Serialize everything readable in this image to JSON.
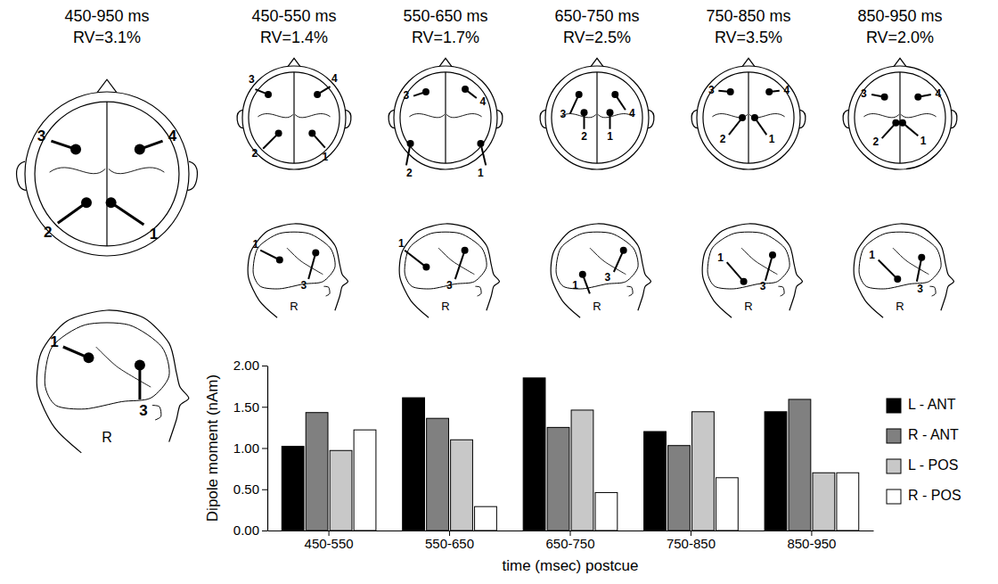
{
  "panels": [
    {
      "title": "450-950 ms",
      "rv": "RV=3.1%",
      "axial_labels": [
        "1",
        "2",
        "3",
        "4"
      ],
      "sagittal_labels": [
        "1",
        "3"
      ],
      "view": "R"
    },
    {
      "title": "450-550 ms",
      "rv": "RV=1.4%",
      "axial_labels": [
        "1",
        "2",
        "3",
        "4"
      ],
      "sagittal_labels": [
        "1",
        "3"
      ],
      "view": "R"
    },
    {
      "title": "550-650 ms",
      "rv": "RV=1.7%",
      "axial_labels": [
        "1",
        "2",
        "3",
        "4"
      ],
      "sagittal_labels": [
        "1",
        "3"
      ],
      "view": "R"
    },
    {
      "title": "650-750 ms",
      "rv": "RV=2.5%",
      "axial_labels": [
        "1",
        "2",
        "3",
        "4"
      ],
      "sagittal_labels": [
        "1",
        "3"
      ],
      "view": "R"
    },
    {
      "title": "750-850 ms",
      "rv": "RV=3.5%",
      "axial_labels": [
        "1",
        "2",
        "3",
        "4"
      ],
      "sagittal_labels": [
        "1",
        "3"
      ],
      "view": "R"
    },
    {
      "title": "850-950 ms",
      "rv": "RV=2.0%",
      "axial_labels": [
        "1",
        "2",
        "3",
        "4"
      ],
      "sagittal_labels": [
        "1",
        "3"
      ],
      "view": "R"
    }
  ],
  "chart_data": {
    "type": "bar",
    "x_label": "time (msec) postcue",
    "y_label": "Dipole moment (nAm)",
    "categories": [
      "450-550",
      "550-650",
      "650-750",
      "750-850",
      "850-950"
    ],
    "series": [
      {
        "name": "L - ANT",
        "color": "#000000",
        "values": [
          1.02,
          1.61,
          1.85,
          1.2,
          1.44
        ]
      },
      {
        "name": "R - ANT",
        "color": "#808080",
        "values": [
          1.43,
          1.36,
          1.25,
          1.03,
          1.59
        ]
      },
      {
        "name": "L - POS",
        "color": "#c8c8c8",
        "values": [
          0.97,
          1.1,
          1.46,
          1.44,
          0.7
        ]
      },
      {
        "name": "R - POS",
        "color": "#ffffff",
        "values": [
          1.22,
          0.29,
          0.46,
          0.64,
          0.7
        ]
      }
    ],
    "ylim": [
      0,
      2
    ],
    "yticks": [
      {
        "value": 0,
        "label": "0.00"
      },
      {
        "value": 0.5,
        "label": "0.50"
      },
      {
        "value": 1,
        "label": "1.00"
      },
      {
        "value": 1.5,
        "label": "1.50"
      },
      {
        "value": 2,
        "label": "2.00"
      }
    ],
    "grid": false,
    "legend": "right"
  }
}
